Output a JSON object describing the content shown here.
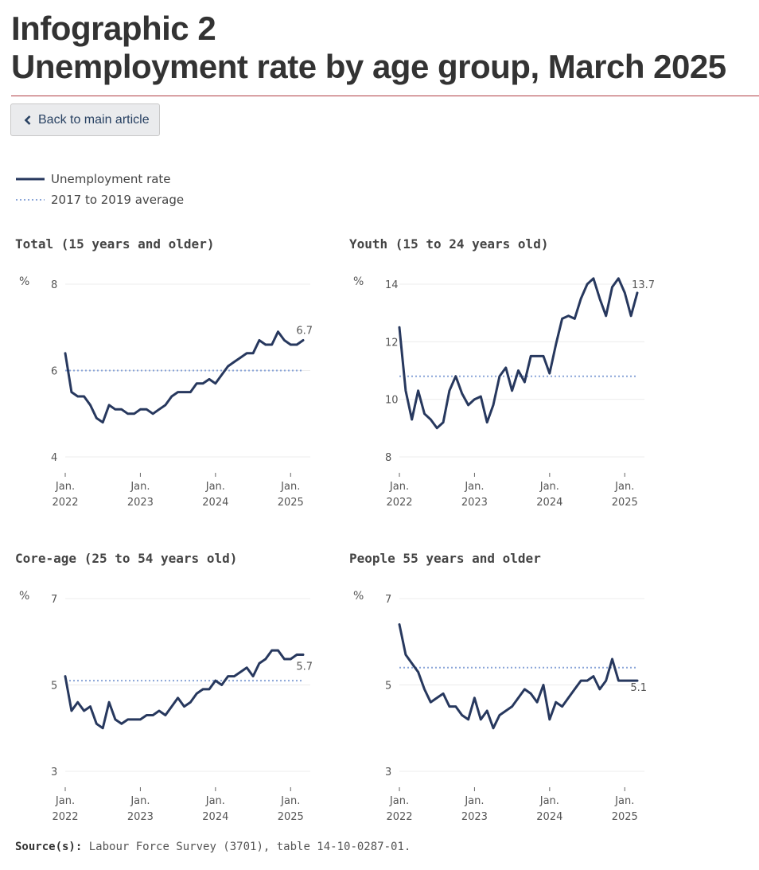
{
  "header": {
    "title_line1": "Infographic 2",
    "title_line2": "Unemployment rate by age group, March 2025",
    "back_label": "Back to main article"
  },
  "legend": {
    "line_label": "Unemployment rate",
    "avg_label": "2017 to 2019 average"
  },
  "colors": {
    "line": "#27385e",
    "average": "#8aa5d8",
    "grid": "#ececec",
    "rule": "#af3c43"
  },
  "source": {
    "label": "Source(s):",
    "text": "Labour Force Survey (3701), table 14-10-0287-01."
  },
  "chart_data": [
    {
      "type": "line",
      "title": "Total (15 years and older)",
      "ylabel": "%",
      "ylim": [
        4,
        8
      ],
      "yticks": [
        "4",
        "6",
        "8"
      ],
      "xticks": [
        [
          "Jan.",
          "2022"
        ],
        [
          "Jan.",
          "2023"
        ],
        [
          "Jan.",
          "2024"
        ],
        [
          "Jan.",
          "2025"
        ]
      ],
      "x_start": "2022-01",
      "x_end": "2025-03",
      "average": 6.0,
      "last_label": "6.7",
      "series": [
        {
          "values": [
            6.4,
            5.5,
            5.4,
            5.4,
            5.2,
            4.9,
            4.8,
            5.2,
            5.1,
            5.1,
            5.0,
            5.0,
            5.1,
            5.1,
            5.0,
            5.1,
            5.2,
            5.4,
            5.5,
            5.5,
            5.5,
            5.7,
            5.7,
            5.8,
            5.7,
            5.9,
            6.1,
            6.2,
            6.3,
            6.4,
            6.4,
            6.7,
            6.6,
            6.6,
            6.9,
            6.7,
            6.6,
            6.6,
            6.7
          ]
        }
      ]
    },
    {
      "type": "line",
      "title": "Youth (15 to 24 years old)",
      "ylabel": "%",
      "ylim": [
        8,
        14
      ],
      "yticks": [
        "8",
        "10",
        "12",
        "14"
      ],
      "xticks": [
        [
          "Jan.",
          "2022"
        ],
        [
          "Jan.",
          "2023"
        ],
        [
          "Jan.",
          "2024"
        ],
        [
          "Jan.",
          "2025"
        ]
      ],
      "x_start": "2022-01",
      "x_end": "2025-03",
      "average": 10.8,
      "last_label": "13.7",
      "series": [
        {
          "values": [
            12.5,
            10.3,
            9.3,
            10.3,
            9.5,
            9.3,
            9.0,
            9.2,
            10.3,
            10.8,
            10.2,
            9.8,
            10.0,
            10.1,
            9.2,
            9.8,
            10.8,
            11.1,
            10.3,
            11.0,
            10.6,
            11.5,
            11.5,
            11.5,
            10.9,
            11.9,
            12.8,
            12.9,
            12.8,
            13.5,
            14.0,
            14.2,
            13.5,
            12.9,
            13.9,
            14.2,
            13.7,
            12.9,
            13.7
          ]
        }
      ]
    },
    {
      "type": "line",
      "title": "Core-age (25 to 54 years old)",
      "ylabel": "%",
      "ylim": [
        3,
        7
      ],
      "yticks": [
        "3",
        "5",
        "7"
      ],
      "xticks": [
        [
          "Jan.",
          "2022"
        ],
        [
          "Jan.",
          "2023"
        ],
        [
          "Jan.",
          "2024"
        ],
        [
          "Jan.",
          "2025"
        ]
      ],
      "x_start": "2022-01",
      "x_end": "2025-03",
      "average": 5.1,
      "last_label": "5.7",
      "series": [
        {
          "values": [
            5.2,
            4.4,
            4.6,
            4.4,
            4.5,
            4.1,
            4.0,
            4.6,
            4.2,
            4.1,
            4.2,
            4.2,
            4.2,
            4.3,
            4.3,
            4.4,
            4.3,
            4.5,
            4.7,
            4.5,
            4.6,
            4.8,
            4.9,
            4.9,
            5.1,
            5.0,
            5.2,
            5.2,
            5.3,
            5.4,
            5.2,
            5.5,
            5.6,
            5.8,
            5.8,
            5.6,
            5.6,
            5.7,
            5.7
          ]
        }
      ]
    },
    {
      "type": "line",
      "title": "People 55 years and older",
      "ylabel": "%",
      "ylim": [
        3,
        7
      ],
      "yticks": [
        "3",
        "5",
        "7"
      ],
      "xticks": [
        [
          "Jan.",
          "2022"
        ],
        [
          "Jan.",
          "2023"
        ],
        [
          "Jan.",
          "2024"
        ],
        [
          "Jan.",
          "2025"
        ]
      ],
      "x_start": "2022-01",
      "x_end": "2025-03",
      "average": 5.4,
      "last_label": "5.1",
      "series": [
        {
          "values": [
            6.4,
            5.7,
            5.5,
            5.3,
            4.9,
            4.6,
            4.7,
            4.8,
            4.5,
            4.5,
            4.3,
            4.2,
            4.7,
            4.2,
            4.4,
            4.0,
            4.3,
            4.4,
            4.5,
            4.7,
            4.9,
            4.8,
            4.6,
            5.0,
            4.2,
            4.6,
            4.5,
            4.7,
            4.9,
            5.1,
            5.1,
            5.2,
            4.9,
            5.1,
            5.6,
            5.1,
            5.1,
            5.1,
            5.1
          ]
        }
      ]
    }
  ]
}
